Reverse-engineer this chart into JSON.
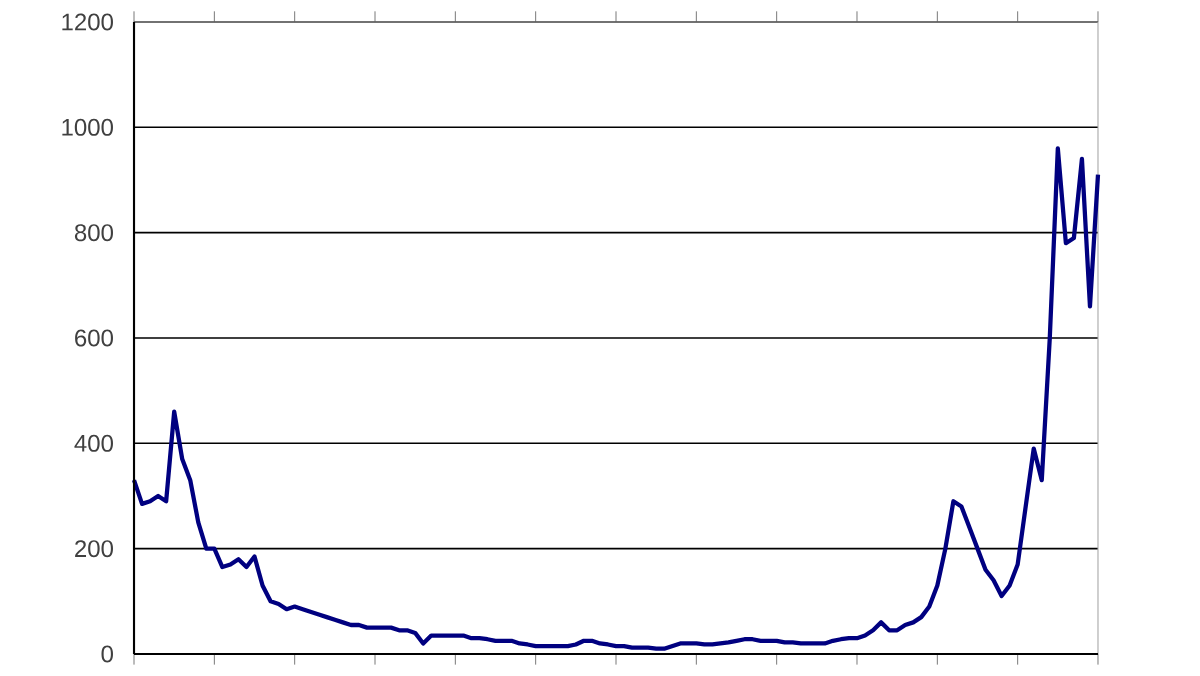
{
  "chart_data": {
    "type": "line",
    "categories": [
      null,
      null,
      null,
      null,
      null,
      null,
      null,
      null,
      null,
      null,
      null,
      null,
      null,
      null,
      null,
      null,
      null,
      null,
      null,
      null,
      null,
      null,
      null,
      null,
      null,
      null,
      null,
      null,
      null,
      null,
      null,
      null,
      null,
      null,
      null,
      null,
      null,
      null,
      null,
      null,
      null,
      null,
      null,
      null,
      null,
      null,
      null,
      null,
      null,
      null,
      null,
      null,
      null,
      null,
      null,
      null,
      null,
      null,
      null,
      null,
      null,
      null,
      null,
      null,
      null,
      null,
      null,
      null,
      null,
      null,
      null,
      null,
      null,
      null,
      null,
      null,
      null,
      null,
      null,
      null,
      null,
      null,
      null,
      null,
      null,
      null,
      null,
      null,
      null,
      null,
      null,
      null,
      null,
      null,
      null,
      null,
      null,
      null,
      null,
      null,
      null,
      null,
      null,
      null,
      null,
      null,
      null,
      null,
      null,
      null,
      null,
      null,
      null,
      null,
      null,
      null,
      null,
      null,
      null,
      null,
      null
    ],
    "series": [
      {
        "color": "#000080",
        "values": [
          330,
          285,
          290,
          300,
          290,
          460,
          370,
          330,
          250,
          200,
          200,
          165,
          170,
          180,
          165,
          185,
          130,
          100,
          95,
          85,
          90,
          85,
          80,
          75,
          70,
          65,
          60,
          55,
          55,
          50,
          50,
          50,
          50,
          45,
          45,
          40,
          20,
          35,
          35,
          35,
          35,
          35,
          30,
          30,
          28,
          25,
          25,
          25,
          20,
          18,
          15,
          15,
          15,
          15,
          15,
          18,
          25,
          25,
          20,
          18,
          15,
          15,
          12,
          12,
          12,
          10,
          10,
          15,
          20,
          20,
          20,
          18,
          18,
          20,
          22,
          25,
          28,
          28,
          25,
          25,
          25,
          22,
          22,
          20,
          20,
          20,
          20,
          25,
          28,
          30,
          30,
          35,
          45,
          60,
          45,
          45,
          55,
          60,
          70,
          90,
          130,
          200,
          290,
          280,
          240,
          200,
          160,
          140,
          110,
          130,
          170,
          280,
          390,
          330,
          600,
          960,
          780,
          790,
          940,
          660,
          910
        ]
      }
    ],
    "ylim": [
      0,
      1200
    ],
    "yticks": [
      0,
      200,
      400,
      600,
      800,
      1000,
      1200
    ],
    "grid": "y"
  }
}
